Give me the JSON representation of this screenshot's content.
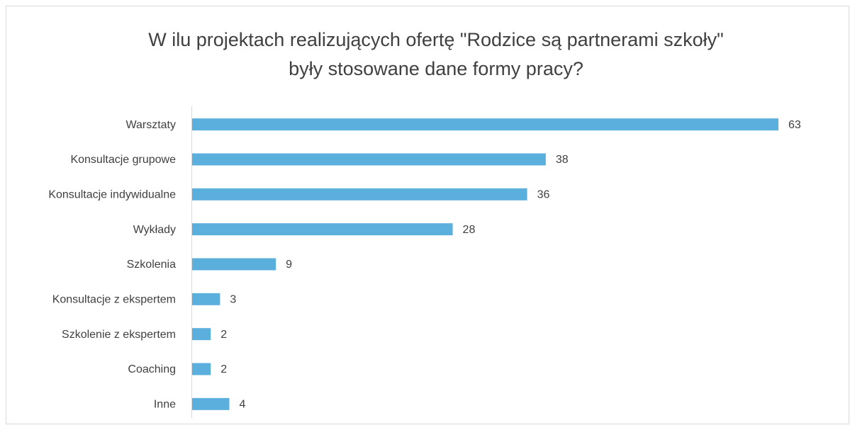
{
  "chart_data": {
    "type": "bar",
    "orientation": "horizontal",
    "title": [
      "W ilu projektach realizujących ofertę \"Rodzice są partnerami szkoły\"",
      "były stosowane dane formy pracy?"
    ],
    "categories": [
      "Warsztaty",
      "Konsultacje grupowe",
      "Konsultacje indywidualne",
      "Wykłady",
      "Szkolenia",
      "Konsultacje z ekspertem",
      "Szkolenie z ekspertem",
      "Coaching",
      "Inne"
    ],
    "values": [
      63,
      38,
      36,
      28,
      9,
      3,
      2,
      2,
      4
    ],
    "color": "#5bafdc",
    "xlim": [
      0,
      63
    ]
  }
}
